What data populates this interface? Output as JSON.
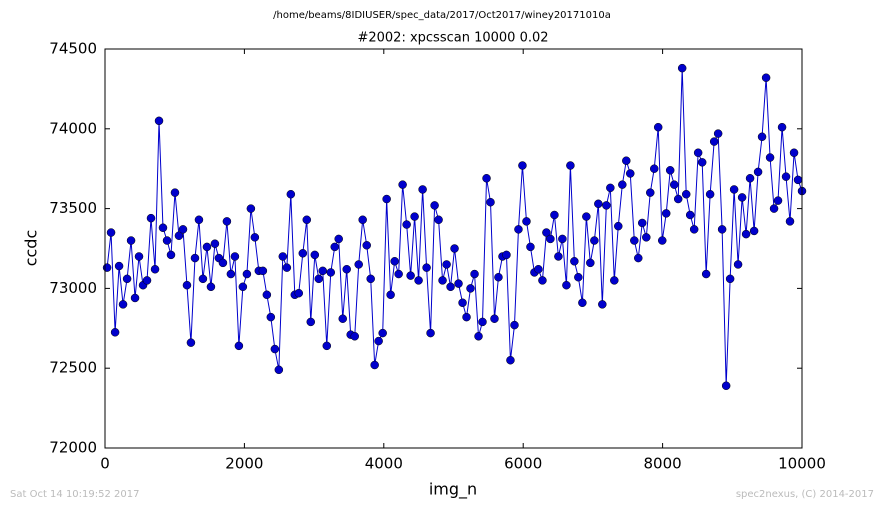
{
  "chart_data": {
    "type": "line",
    "suptitle": "/home/beams/8IDIUSER/spec_data/2017/Oct2017/winey20171010a",
    "title": "#2002: xpcsscan 10000 0.02",
    "xlabel": "img_n",
    "ylabel": "ccdc",
    "footer_left": "Sat Oct 14 10:19:52 2017",
    "footer_right": "spec2nexus, (C) 2014-2017",
    "color": "#0000cc",
    "xlim": [
      0,
      10000
    ],
    "ylim": [
      72000,
      74500
    ],
    "xticks": [
      0,
      2000,
      4000,
      6000,
      8000,
      10000
    ],
    "yticks": [
      72000,
      72500,
      73000,
      73500,
      74000,
      74500
    ],
    "x": [
      30,
      87,
      145,
      202,
      259,
      317,
      374,
      431,
      488,
      546,
      603,
      660,
      718,
      775,
      832,
      890,
      947,
      1004,
      1061,
      1119,
      1176,
      1233,
      1291,
      1348,
      1405,
      1463,
      1520,
      1577,
      1634,
      1692,
      1749,
      1806,
      1864,
      1921,
      1978,
      2036,
      2093,
      2150,
      2207,
      2265,
      2322,
      2379,
      2437,
      2494,
      2551,
      2609,
      2666,
      2723,
      2780,
      2838,
      2895,
      2952,
      3010,
      3067,
      3124,
      3182,
      3239,
      3296,
      3353,
      3411,
      3468,
      3525,
      3583,
      3640,
      3697,
      3755,
      3812,
      3869,
      3926,
      3984,
      4041,
      4098,
      4156,
      4213,
      4270,
      4328,
      4385,
      4442,
      4499,
      4557,
      4614,
      4671,
      4729,
      4786,
      4843,
      4901,
      4958,
      5015,
      5072,
      5130,
      5187,
      5244,
      5302,
      5359,
      5416,
      5474,
      5531,
      5588,
      5645,
      5703,
      5760,
      5817,
      5875,
      5932,
      5989,
      6047,
      6104,
      6161,
      6218,
      6276,
      6333,
      6390,
      6448,
      6505,
      6562,
      6620,
      6677,
      6734,
      6791,
      6849,
      6906,
      6963,
      7021,
      7078,
      7135,
      7193,
      7250,
      7307,
      7364,
      7422,
      7479,
      7536,
      7594,
      7651,
      7708,
      7766,
      7823,
      7880,
      7937,
      7995,
      8052,
      8109,
      8167,
      8224,
      8281,
      8339,
      8396,
      8453,
      8510,
      8568,
      8625,
      8682,
      8740,
      8797,
      8854,
      8912,
      8969,
      9026,
      9083,
      9141,
      9198,
      9255,
      9313,
      9370,
      9427,
      9485,
      9542,
      9599,
      9656,
      9714,
      9771,
      9828,
      9886,
      9943,
      10000
    ],
    "values": [
      73130,
      73350,
      72725,
      73140,
      72900,
      73060,
      73300,
      72940,
      73200,
      73020,
      73050,
      73440,
      73120,
      74050,
      73380,
      73300,
      73210,
      73600,
      73330,
      73370,
      73020,
      72660,
      73190,
      73430,
      73060,
      73260,
      73010,
      73280,
      73190,
      73160,
      73420,
      73090,
      73200,
      72640,
      73010,
      73090,
      73500,
      73320,
      73110,
      73110,
      72960,
      72820,
      72620,
      72490,
      73200,
      73130,
      73590,
      72960,
      72970,
      73220,
      73430,
      72790,
      73210,
      73060,
      73110,
      72640,
      73100,
      73260,
      73310,
      72810,
      73120,
      72710,
      72700,
      73150,
      73430,
      73270,
      73060,
      72520,
      72670,
      72720,
      73560,
      72960,
      73170,
      73090,
      73650,
      73400,
      73080,
      73450,
      73050,
      73620,
      73130,
      72720,
      73520,
      73430,
      73050,
      73150,
      73010,
      73250,
      73030,
      72910,
      72820,
      73000,
      73090,
      72700,
      72790,
      73690,
      73540,
      72810,
      73070,
      73200,
      73210,
      72550,
      72770,
      73370,
      73770,
      73420,
      73260,
      73100,
      73120,
      73050,
      73350,
      73310,
      73460,
      73200,
      73310,
      73020,
      73770,
      73170,
      73070,
      72910,
      73450,
      73160,
      73300,
      73530,
      72900,
      73520,
      73630,
      73050,
      73390,
      73650,
      73800,
      73720,
      73300,
      73190,
      73410,
      73320,
      73600,
      73750,
      74010,
      73300,
      73470,
      73740,
      73650,
      73560,
      74380,
      73590,
      73460,
      73370,
      73850,
      73790,
      73090,
      73590,
      73920,
      73970,
      73370,
      72390,
      73060,
      73620,
      73150,
      73570,
      73340,
      73690,
      73360,
      73730,
      73950,
      74320,
      73820,
      73500,
      73550,
      74010,
      73700,
      73420,
      73850,
      73680,
      73610
    ]
  }
}
